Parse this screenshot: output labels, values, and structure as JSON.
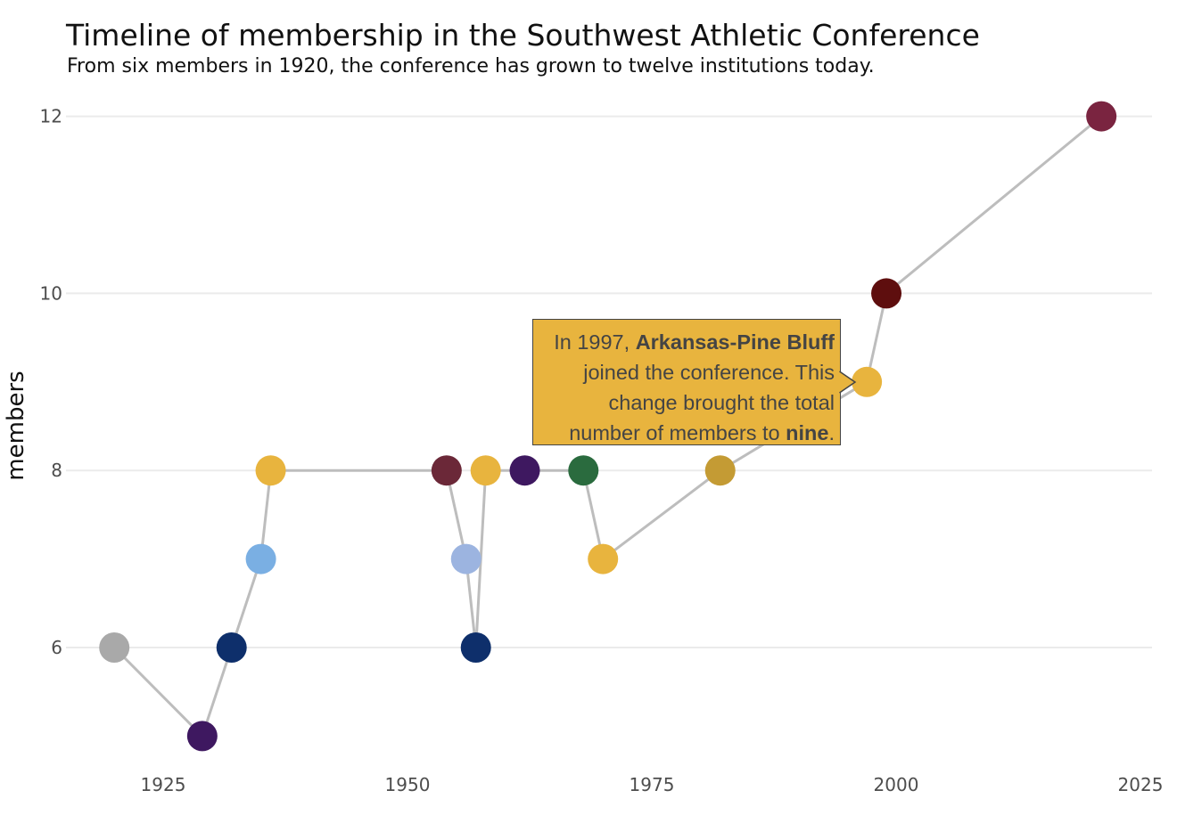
{
  "title": "Timeline of membership in the Southwest Athletic Conference",
  "subtitle": "From six members in 1920, the conference has grown to twelve institutions today.",
  "chart_data": {
    "type": "line",
    "xlabel": "",
    "ylabel": "members",
    "xlim": [
      1914,
      2025
    ],
    "ylim": [
      4.8,
      12.3
    ],
    "x_ticks": [
      1925,
      1950,
      1975,
      2000,
      2025
    ],
    "y_ticks": [
      6,
      8,
      10,
      12
    ],
    "grid": "horizontal",
    "line_color": "#bdbdbd",
    "points": [
      {
        "year": 1920,
        "members": 6,
        "color": "#a9a9a9"
      },
      {
        "year": 1929,
        "members": 5,
        "color": "#3e1860"
      },
      {
        "year": 1932,
        "members": 6,
        "color": "#0e2f6b"
      },
      {
        "year": 1935,
        "members": 7,
        "color": "#7aafe3"
      },
      {
        "year": 1936,
        "members": 8,
        "color": "#e8b43e"
      },
      {
        "year": 1954,
        "members": 8,
        "color": "#6b2838"
      },
      {
        "year": 1956,
        "members": 7,
        "color": "#9cb4e0"
      },
      {
        "year": 1957,
        "members": 6,
        "color": "#0e2f6b"
      },
      {
        "year": 1958,
        "members": 8,
        "color": "#e8b43e"
      },
      {
        "year": 1962,
        "members": 8,
        "color": "#3e1860"
      },
      {
        "year": 1968,
        "members": 8,
        "color": "#2a6b3e"
      },
      {
        "year": 1970,
        "members": 7,
        "color": "#e8b43e"
      },
      {
        "year": 1982,
        "members": 8,
        "color": "#c49b34"
      },
      {
        "year": 1997,
        "members": 9,
        "color": "#e8b43e"
      },
      {
        "year": 1999,
        "members": 10,
        "color": "#5e0e0e"
      },
      {
        "year": 2021,
        "members": 12,
        "color": "#7a2440"
      }
    ]
  },
  "tooltip": {
    "year": "1997",
    "text_1": "In ",
    "text_2": ", ",
    "school": "Arkansas-Pine Bluff",
    "text_3": " joined the conference. This change brought the total number of members to ",
    "count_word": "nine",
    "text_4": ".",
    "background": "#e8b43e"
  }
}
